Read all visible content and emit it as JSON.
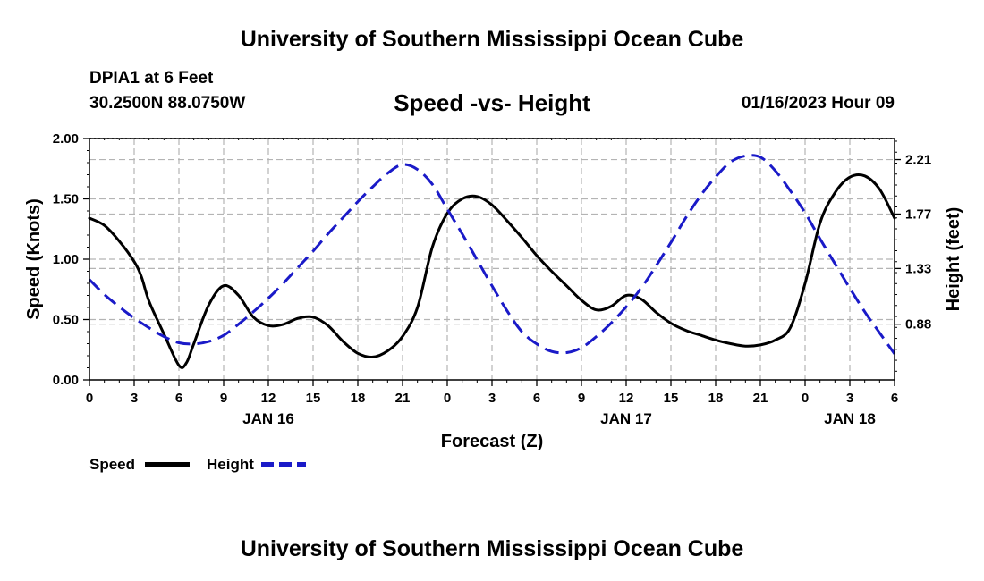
{
  "header": {
    "title": "University of Southern Mississippi Ocean Cube",
    "station": "DPIA1 at 6 Feet",
    "coords": "30.2500N  88.0750W",
    "datestamp": "01/16/2023 Hour 09",
    "footer": "University of Southern Mississippi Ocean Cube"
  },
  "chart_data": {
    "type": "line",
    "title": "Speed -vs- Height",
    "xlabel": "Forecast (Z)",
    "ylabel": "Speed (Knots)",
    "y2label": "Height (feet)",
    "x_unit": "hours since JAN 16 00Z",
    "xlim": [
      0,
      54
    ],
    "ylim": [
      0,
      2
    ],
    "y2lim": [
      0.43,
      2.38
    ],
    "grid": true,
    "x_ticks": [
      0,
      3,
      6,
      9,
      12,
      15,
      18,
      21,
      24,
      27,
      30,
      33,
      36,
      39,
      42,
      45,
      48,
      51,
      54
    ],
    "x_tick_labels": [
      "0",
      "3",
      "6",
      "9",
      "12",
      "15",
      "18",
      "21",
      "0",
      "3",
      "6",
      "9",
      "12",
      "15",
      "18",
      "21",
      "0",
      "3",
      "6"
    ],
    "date_labels": [
      {
        "x": 12,
        "label": "JAN 16"
      },
      {
        "x": 36,
        "label": "JAN 17"
      },
      {
        "x": 51,
        "label": "JAN 18"
      }
    ],
    "y_ticks": [
      0,
      0.5,
      1,
      1.5,
      2
    ],
    "y_tick_labels": [
      "0.00",
      "0.50",
      "1.00",
      "1.50",
      "2.00"
    ],
    "y2_ticks": [
      0.88,
      1.33,
      1.77,
      2.21
    ],
    "y2_tick_labels": [
      "0.88",
      "1.33",
      "1.77",
      "2.21"
    ],
    "series": [
      {
        "name": "Speed",
        "axis": "left",
        "color": "#000000",
        "dash": "solid",
        "x": [
          0,
          1,
          2,
          3,
          3.5,
          4,
          5,
          6,
          6.5,
          7,
          8,
          9,
          10,
          11,
          12,
          13,
          14,
          15,
          16,
          17,
          18,
          19,
          20,
          21,
          22,
          23,
          24,
          25,
          26,
          27,
          28,
          29,
          30,
          31,
          32,
          33,
          34,
          35,
          36,
          37,
          38,
          39,
          40,
          41,
          42,
          43,
          44,
          45,
          46,
          47,
          48,
          49,
          50,
          51,
          52,
          53,
          54
        ],
        "y": [
          1.34,
          1.28,
          1.15,
          0.98,
          0.85,
          0.65,
          0.38,
          0.12,
          0.14,
          0.3,
          0.62,
          0.78,
          0.7,
          0.52,
          0.45,
          0.46,
          0.51,
          0.52,
          0.45,
          0.32,
          0.22,
          0.19,
          0.24,
          0.36,
          0.6,
          1.1,
          1.38,
          1.5,
          1.52,
          1.45,
          1.32,
          1.18,
          1.03,
          0.9,
          0.78,
          0.66,
          0.58,
          0.61,
          0.7,
          0.67,
          0.56,
          0.47,
          0.41,
          0.37,
          0.33,
          0.3,
          0.28,
          0.29,
          0.33,
          0.43,
          0.8,
          1.3,
          1.55,
          1.68,
          1.69,
          1.58,
          1.34
        ]
      },
      {
        "name": "Height",
        "axis": "right",
        "color": "#1a1ac8",
        "dash": "dashed",
        "x": [
          0,
          1,
          2,
          3,
          4,
          5,
          6,
          7,
          8,
          9,
          10,
          11,
          12,
          13,
          14,
          15,
          16,
          17,
          18,
          19,
          20,
          21,
          22,
          23,
          24,
          25,
          26,
          27,
          28,
          29,
          30,
          31,
          32,
          33,
          34,
          35,
          36,
          37,
          38,
          39,
          40,
          41,
          42,
          43,
          44,
          45,
          46,
          47,
          48,
          49,
          50,
          51,
          52,
          53,
          54
        ],
        "y": [
          1.24,
          1.12,
          1.02,
          0.93,
          0.85,
          0.78,
          0.73,
          0.72,
          0.74,
          0.79,
          0.88,
          0.98,
          1.09,
          1.21,
          1.34,
          1.47,
          1.61,
          1.74,
          1.87,
          1.99,
          2.1,
          2.17,
          2.13,
          2.01,
          1.81,
          1.61,
          1.4,
          1.19,
          0.99,
          0.82,
          0.72,
          0.66,
          0.65,
          0.69,
          0.78,
          0.89,
          1.02,
          1.17,
          1.35,
          1.54,
          1.74,
          1.92,
          2.07,
          2.19,
          2.24,
          2.23,
          2.12,
          1.96,
          1.78,
          1.57,
          1.37,
          1.17,
          0.98,
          0.81,
          0.64
        ]
      }
    ],
    "legend": {
      "placement": "bottom-left",
      "entries": [
        {
          "label": "Speed",
          "color": "#000000",
          "dash": "solid"
        },
        {
          "label": "Height",
          "color": "#1a1ac8",
          "dash": "dashed"
        }
      ]
    }
  }
}
